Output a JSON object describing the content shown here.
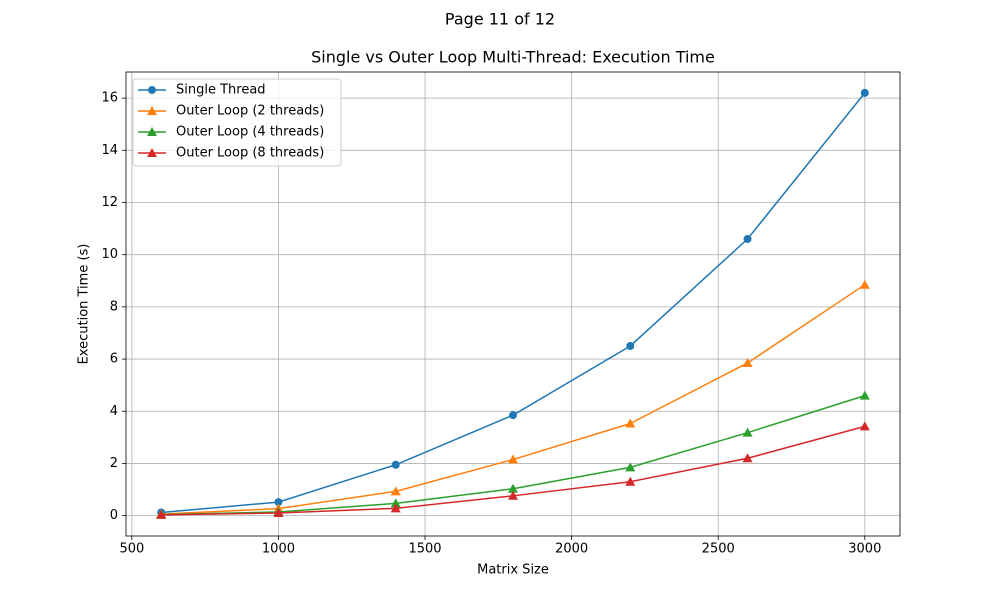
{
  "page_title": "Page 11 of 12",
  "chart_data": {
    "type": "line",
    "title": "Single vs Outer Loop Multi-Thread: Execution Time",
    "x_label": "Matrix Size",
    "y_label": "Execution Time (s)",
    "x": [
      600,
      1000,
      1400,
      1800,
      2200,
      2600,
      3000
    ],
    "series": [
      {
        "name": "Single Thread",
        "color": "#1f77b4",
        "marker": "circle",
        "values": [
          0.12,
          0.52,
          1.95,
          3.85,
          6.5,
          10.6,
          16.2
        ]
      },
      {
        "name": "Outer Loop (2 threads)",
        "color": "#ff7f0e",
        "marker": "triangle",
        "values": [
          0.06,
          0.27,
          0.93,
          2.15,
          3.53,
          5.85,
          8.85
        ]
      },
      {
        "name": "Outer Loop (4 threads)",
        "color": "#2ca02c",
        "marker": "triangle",
        "values": [
          0.04,
          0.14,
          0.47,
          1.03,
          1.85,
          3.18,
          4.6
        ]
      },
      {
        "name": "Outer Loop (8 threads)",
        "color": "#d62728",
        "marker": "triangle",
        "values": [
          0.03,
          0.1,
          0.28,
          0.76,
          1.3,
          2.2,
          3.42
        ]
      }
    ],
    "xlim": [
      480,
      3120
    ],
    "ylim": [
      -0.78,
      17.0
    ],
    "xticks": [
      500,
      1000,
      1500,
      2000,
      2500,
      3000
    ],
    "yticks": [
      0,
      2,
      4,
      6,
      8,
      10,
      12,
      14,
      16
    ],
    "grid": true,
    "legend": "upper-left"
  }
}
